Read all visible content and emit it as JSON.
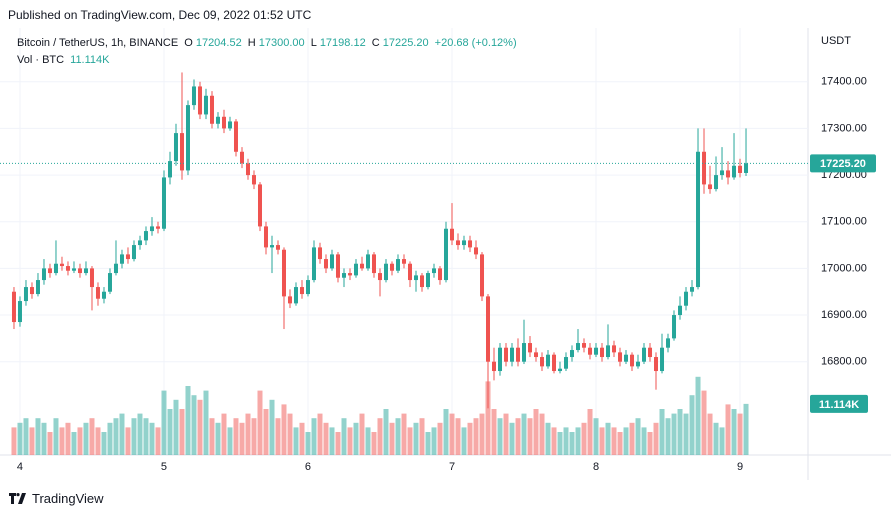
{
  "published": "Published on TradingView.com, Dec 09, 2022 01:52 UTC",
  "header": {
    "symbol": "Bitcoin / TetherUS, 1h, BINANCE",
    "o_label": "O",
    "o": "17204.52",
    "h_label": "H",
    "h": "17300.00",
    "l_label": "L",
    "l": "17198.12",
    "c_label": "C",
    "c": "17225.20",
    "change": "+20.68 (+0.12%)",
    "vol_label": "Vol · BTC",
    "vol": "11.114K"
  },
  "footer": {
    "brand": "TradingView"
  },
  "chart_data": {
    "type": "candlestick",
    "y_axis_label": "USDT",
    "up_color": "#26a69a",
    "down_color": "#ef5350",
    "grid": true,
    "xlim": [
      -2.33,
      132.33
    ],
    "xticks": [
      {
        "value": 1,
        "label": "4"
      },
      {
        "value": 25,
        "label": "5"
      },
      {
        "value": 49,
        "label": "6"
      },
      {
        "value": 73,
        "label": "7"
      },
      {
        "value": 97,
        "label": "8"
      },
      {
        "value": 121,
        "label": "9"
      }
    ],
    "ylim": [
      16600,
      17511
    ],
    "yticks": [
      {
        "value": 16800,
        "label": "16800.00"
      },
      {
        "value": 16900,
        "label": "16900.00"
      },
      {
        "value": 17000,
        "label": "17000.00"
      },
      {
        "value": 17100,
        "label": "17100.00"
      },
      {
        "value": 17200,
        "label": "17200.00"
      },
      {
        "value": 17300,
        "label": "17300.00"
      },
      {
        "value": 17400,
        "label": "17400.00"
      }
    ],
    "last_price": {
      "value": 17225.2,
      "label": "17225.20"
    },
    "last_volume": {
      "value": 11.114,
      "label": "11.114K"
    },
    "volume_lim": [
      0,
      25
    ],
    "candles": [
      [
        16950,
        16960,
        16870,
        16885
      ],
      [
        16885,
        16940,
        16875,
        16930
      ],
      [
        16930,
        16975,
        16920,
        16960
      ],
      [
        16960,
        16970,
        16935,
        16945
      ],
      [
        16945,
        16990,
        16940,
        16975
      ],
      [
        16975,
        17020,
        16965,
        17000
      ],
      [
        17000,
        17010,
        16980,
        16990
      ],
      [
        16990,
        17060,
        16985,
        17010
      ],
      [
        17010,
        17025,
        16995,
        17005
      ],
      [
        17005,
        17015,
        16985,
        16995
      ],
      [
        16995,
        17015,
        16990,
        17000
      ],
      [
        17000,
        17010,
        16980,
        16990
      ],
      [
        16990,
        17015,
        16985,
        17000
      ],
      [
        17000,
        17005,
        16910,
        16960
      ],
      [
        16960,
        16970,
        16920,
        16935
      ],
      [
        16935,
        16960,
        16925,
        16950
      ],
      [
        16950,
        17000,
        16945,
        16990
      ],
      [
        16990,
        17060,
        16985,
        17010
      ],
      [
        17010,
        17040,
        17000,
        17030
      ],
      [
        17030,
        17045,
        17010,
        17020
      ],
      [
        17020,
        17060,
        17015,
        17050
      ],
      [
        17050,
        17070,
        17040,
        17060
      ],
      [
        17060,
        17090,
        17050,
        17080
      ],
      [
        17080,
        17110,
        17070,
        17090
      ],
      [
        17090,
        17100,
        17075,
        17085
      ],
      [
        17085,
        17210,
        17080,
        17195
      ],
      [
        17195,
        17250,
        17180,
        17230
      ],
      [
        17230,
        17310,
        17220,
        17290
      ],
      [
        17290,
        17420,
        17190,
        17210
      ],
      [
        17210,
        17360,
        17200,
        17350
      ],
      [
        17350,
        17405,
        17340,
        17390
      ],
      [
        17390,
        17400,
        17320,
        17330
      ],
      [
        17330,
        17385,
        17320,
        17370
      ],
      [
        17370,
        17380,
        17300,
        17310
      ],
      [
        17310,
        17335,
        17300,
        17325
      ],
      [
        17325,
        17340,
        17290,
        17300
      ],
      [
        17300,
        17325,
        17295,
        17315
      ],
      [
        17315,
        17320,
        17240,
        17250
      ],
      [
        17250,
        17260,
        17215,
        17225
      ],
      [
        17225,
        17235,
        17190,
        17200
      ],
      [
        17200,
        17210,
        17170,
        17180
      ],
      [
        17180,
        17185,
        17080,
        17090
      ],
      [
        17090,
        17100,
        17030,
        17045
      ],
      [
        17045,
        17070,
        16990,
        17050
      ],
      [
        17050,
        17060,
        17030,
        17040
      ],
      [
        17040,
        17045,
        16870,
        16940
      ],
      [
        16940,
        16955,
        16915,
        16925
      ],
      [
        16925,
        16970,
        16920,
        16960
      ],
      [
        16960,
        16975,
        16935,
        16945
      ],
      [
        16945,
        16985,
        16940,
        16975
      ],
      [
        16975,
        17060,
        16970,
        17045
      ],
      [
        17045,
        17055,
        17010,
        17020
      ],
      [
        17020,
        17030,
        16990,
        17000
      ],
      [
        17000,
        17040,
        16995,
        17030
      ],
      [
        17030,
        17035,
        16970,
        16980
      ],
      [
        16980,
        17000,
        16960,
        16990
      ],
      [
        16990,
        17000,
        16975,
        16985
      ],
      [
        16985,
        17020,
        16980,
        17010
      ],
      [
        17010,
        17025,
        16995,
        17000
      ],
      [
        17000,
        17040,
        16995,
        17030
      ],
      [
        17030,
        17035,
        16980,
        16990
      ],
      [
        16990,
        17000,
        16940,
        16975
      ],
      [
        16975,
        17020,
        16970,
        17010
      ],
      [
        17010,
        17015,
        16985,
        16995
      ],
      [
        16995,
        17030,
        16990,
        17020
      ],
      [
        17020,
        17030,
        17000,
        17010
      ],
      [
        17010,
        17015,
        16960,
        16975
      ],
      [
        16975,
        16995,
        16950,
        16985
      ],
      [
        16985,
        16990,
        16950,
        16960
      ],
      [
        16960,
        16995,
        16955,
        16990
      ],
      [
        16990,
        17010,
        16980,
        17000
      ],
      [
        17000,
        17005,
        16965,
        16975
      ],
      [
        16975,
        17100,
        16970,
        17085
      ],
      [
        17085,
        17140,
        17050,
        17060
      ],
      [
        17060,
        17075,
        17040,
        17050
      ],
      [
        17050,
        17070,
        17040,
        17060
      ],
      [
        17060,
        17070,
        17035,
        17045
      ],
      [
        17045,
        17060,
        17020,
        17030
      ],
      [
        17030,
        17035,
        16930,
        16940
      ],
      [
        16940,
        16945,
        16700,
        16800
      ],
      [
        16800,
        16830,
        16760,
        16780
      ],
      [
        16780,
        16840,
        16770,
        16830
      ],
      [
        16830,
        16840,
        16790,
        16800
      ],
      [
        16800,
        16840,
        16790,
        16830
      ],
      [
        16830,
        16850,
        16790,
        16800
      ],
      [
        16800,
        16890,
        16795,
        16840
      ],
      [
        16840,
        16855,
        16810,
        16820
      ],
      [
        16820,
        16830,
        16800,
        16810
      ],
      [
        16810,
        16820,
        16780,
        16790
      ],
      [
        16790,
        16825,
        16785,
        16815
      ],
      [
        16815,
        16820,
        16775,
        16780
      ],
      [
        16780,
        16800,
        16775,
        16785
      ],
      [
        16785,
        16820,
        16780,
        16810
      ],
      [
        16810,
        16835,
        16800,
        16825
      ],
      [
        16825,
        16870,
        16820,
        16840
      ],
      [
        16840,
        16850,
        16820,
        16830
      ],
      [
        16830,
        16840,
        16805,
        16815
      ],
      [
        16815,
        16840,
        16810,
        16830
      ],
      [
        16830,
        16840,
        16800,
        16810
      ],
      [
        16810,
        16880,
        16805,
        16835
      ],
      [
        16835,
        16845,
        16810,
        16820
      ],
      [
        16820,
        16830,
        16790,
        16800
      ],
      [
        16800,
        16825,
        16795,
        16815
      ],
      [
        16815,
        16820,
        16780,
        16790
      ],
      [
        16790,
        16815,
        16785,
        16800
      ],
      [
        16800,
        16840,
        16795,
        16830
      ],
      [
        16830,
        16840,
        16800,
        16810
      ],
      [
        16810,
        16820,
        16740,
        16780
      ],
      [
        16780,
        16860,
        16775,
        16830
      ],
      [
        16830,
        16860,
        16820,
        16850
      ],
      [
        16850,
        16910,
        16845,
        16900
      ],
      [
        16900,
        16940,
        16890,
        16920
      ],
      [
        16920,
        16960,
        16910,
        16950
      ],
      [
        16950,
        16975,
        16940,
        16960
      ],
      [
        16960,
        17300,
        16955,
        17250
      ],
      [
        17250,
        17300,
        17160,
        17180
      ],
      [
        17180,
        17220,
        17160,
        17170
      ],
      [
        17170,
        17240,
        17165,
        17200
      ],
      [
        17200,
        17260,
        17190,
        17210
      ],
      [
        17210,
        17230,
        17180,
        17195
      ],
      [
        17195,
        17290,
        17190,
        17220
      ],
      [
        17220,
        17235,
        17195,
        17204.52
      ],
      [
        17204.52,
        17300,
        17198.12,
        17225.2
      ]
    ],
    "volumes": [
      6,
      7,
      8,
      6,
      8,
      7,
      5,
      8,
      6,
      7,
      5,
      6,
      7,
      8,
      6,
      5,
      7,
      8,
      9,
      6,
      8,
      9,
      8,
      7,
      6,
      14,
      10,
      12,
      10,
      15,
      13,
      12,
      14,
      8,
      7,
      9,
      6,
      8,
      7,
      9,
      8,
      14,
      10,
      12,
      8,
      11,
      9,
      6,
      7,
      5,
      8,
      9,
      7,
      6,
      5,
      8,
      6,
      7,
      9,
      6,
      5,
      8,
      10,
      7,
      8,
      9,
      6,
      7,
      8,
      5,
      6,
      7,
      10,
      9,
      8,
      6,
      7,
      8,
      9,
      16,
      10,
      8,
      9,
      7,
      8,
      9,
      8,
      10,
      9,
      7,
      6,
      5,
      6,
      5,
      6,
      7,
      10,
      8,
      6,
      7,
      6,
      5,
      6,
      7,
      8,
      6,
      5,
      7,
      10,
      8,
      9,
      10,
      9,
      13,
      17,
      14,
      9,
      7,
      6,
      11,
      10,
      9,
      11.114
    ]
  }
}
